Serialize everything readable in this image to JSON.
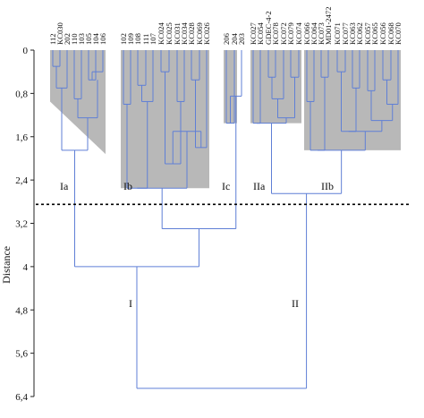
{
  "axis": {
    "title": "Distance",
    "ticks": [
      "0",
      "0,8",
      "1,6",
      "2,4",
      "3,2",
      "4",
      "4,8",
      "5,6",
      "6,4"
    ],
    "tick_values": [
      0,
      0.8,
      1.6,
      2.4,
      3.2,
      4.0,
      4.8,
      5.6,
      6.4
    ],
    "range": [
      0,
      6.4
    ],
    "direction": "down"
  },
  "cut_line": {
    "distance": 2.85,
    "style": "dotted"
  },
  "leaves": [
    "112",
    "KC030",
    "202",
    "110",
    "103",
    "105",
    "104",
    "106",
    "102",
    "109",
    "108",
    "111",
    "107",
    "KC024",
    "KC025",
    "KC031",
    "KC034",
    "KC028",
    "KC069",
    "KC026",
    "206",
    "204",
    "203",
    "KC027",
    "KC054",
    "GDEC-4-2",
    "KC078",
    "KC072",
    "KC079",
    "KC074",
    "KC066",
    "KC064",
    "KC073",
    "MD01-2472",
    "KC071",
    "KC077",
    "KC063",
    "KC062",
    "KC057",
    "KC065",
    "KC056",
    "KC068",
    "KC070"
  ],
  "groups": [
    {
      "label": "Ia"
    },
    {
      "label": "Ib"
    },
    {
      "label": "Ic"
    },
    {
      "label": "IIa"
    },
    {
      "label": "IIb"
    },
    {
      "label": "I"
    },
    {
      "label": "II"
    }
  ],
  "colors": {
    "branch": "#5f7fd6",
    "fill": "#b8b8b8",
    "text": "#111111"
  }
}
